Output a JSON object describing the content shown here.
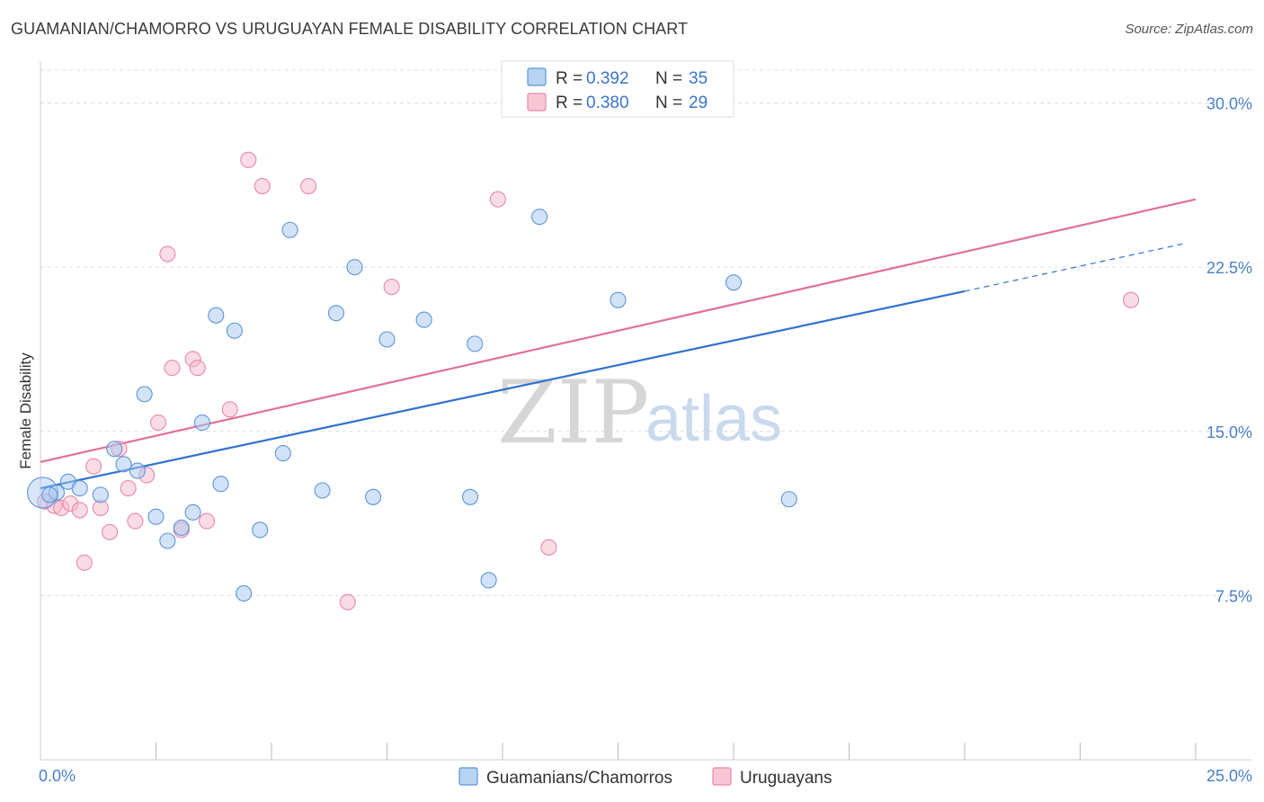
{
  "title": "GUAMANIAN/CHAMORRO VS URUGUAYAN FEMALE DISABILITY CORRELATION CHART",
  "source": "Source: ZipAtlas.com",
  "watermark": {
    "zip": "ZIP",
    "atlas": "atlas"
  },
  "colors": {
    "blue_fill": "#a8c8f0",
    "blue_stroke": "#5b95d9",
    "blue_line": "#2f72d0",
    "pink_fill": "#f6b9cc",
    "pink_stroke": "#e889a6",
    "pink_line": "#e0709a",
    "text_blue": "#3a76c8",
    "grid": "#dddddd"
  },
  "legend": {
    "r_label": "R =",
    "n_label": "N =",
    "rows": [
      {
        "series": "blue",
        "r": "0.392",
        "n": "35"
      },
      {
        "series": "pink",
        "r": "0.380",
        "n": "29"
      }
    ]
  },
  "bottom_legend": [
    {
      "series": "blue",
      "label": "Guamanians/Chamorros"
    },
    {
      "series": "pink",
      "label": "Uruguayans"
    }
  ],
  "chart_data": {
    "type": "scatter",
    "title": "GUAMANIAN/CHAMORRO VS URUGUAYAN FEMALE DISABILITY CORRELATION CHART",
    "xlabel": "",
    "ylabel": "Female Disability",
    "xlim": [
      0,
      25
    ],
    "ylim": [
      0,
      31.5
    ],
    "x_tick_labels": [
      {
        "value": 0,
        "label": "0.0%"
      },
      {
        "value": 25,
        "label": "25.0%"
      }
    ],
    "x_minor_ticks": [
      2.5,
      5.0,
      7.5,
      10.0,
      12.5,
      15.0,
      17.5,
      20.0,
      22.5,
      25.0
    ],
    "y_ticks": [
      {
        "value": 7.5,
        "label": "7.5%"
      },
      {
        "value": 15.0,
        "label": "15.0%"
      },
      {
        "value": 22.5,
        "label": "22.5%"
      },
      {
        "value": 30.0,
        "label": "30.0%"
      }
    ],
    "series": [
      {
        "name": "Guamanians/Chamorros",
        "color": "blue",
        "r": 0.392,
        "n": 35,
        "trend": {
          "x0": 0.0,
          "y0": 12.4,
          "x1": 20.0,
          "y1": 21.4,
          "dash_to_x": 24.8,
          "dash_to_y": 23.6
        },
        "points": [
          {
            "x": 0.05,
            "y": 12.2,
            "big": true
          },
          {
            "x": 0.35,
            "y": 12.2
          },
          {
            "x": 0.6,
            "y": 12.7
          },
          {
            "x": 0.85,
            "y": 12.4
          },
          {
            "x": 1.3,
            "y": 12.1
          },
          {
            "x": 1.6,
            "y": 14.2
          },
          {
            "x": 1.8,
            "y": 13.5
          },
          {
            "x": 2.1,
            "y": 13.2
          },
          {
            "x": 2.25,
            "y": 16.7
          },
          {
            "x": 2.5,
            "y": 11.1
          },
          {
            "x": 2.75,
            "y": 10.0
          },
          {
            "x": 3.05,
            "y": 10.6
          },
          {
            "x": 3.3,
            "y": 11.3
          },
          {
            "x": 3.5,
            "y": 15.4
          },
          {
            "x": 3.8,
            "y": 20.3
          },
          {
            "x": 3.9,
            "y": 12.6
          },
          {
            "x": 4.2,
            "y": 19.6
          },
          {
            "x": 4.4,
            "y": 7.6
          },
          {
            "x": 4.75,
            "y": 10.5
          },
          {
            "x": 5.25,
            "y": 14.0
          },
          {
            "x": 5.4,
            "y": 24.2
          },
          {
            "x": 6.1,
            "y": 12.3
          },
          {
            "x": 6.4,
            "y": 20.4
          },
          {
            "x": 6.8,
            "y": 22.5
          },
          {
            "x": 7.2,
            "y": 12.0
          },
          {
            "x": 7.5,
            "y": 19.2
          },
          {
            "x": 8.3,
            "y": 20.1
          },
          {
            "x": 9.3,
            "y": 12.0
          },
          {
            "x": 9.4,
            "y": 19.0
          },
          {
            "x": 9.7,
            "y": 8.2
          },
          {
            "x": 10.8,
            "y": 24.8
          },
          {
            "x": 12.5,
            "y": 21.0
          },
          {
            "x": 15.0,
            "y": 21.8
          },
          {
            "x": 16.2,
            "y": 11.9
          },
          {
            "x": 0.2,
            "y": 12.1
          }
        ]
      },
      {
        "name": "Uruguayans",
        "color": "pink",
        "r": 0.38,
        "n": 29,
        "trend": {
          "x0": 0.0,
          "y0": 13.6,
          "x1": 25.0,
          "y1": 25.6
        },
        "points": [
          {
            "x": 0.1,
            "y": 11.8
          },
          {
            "x": 0.3,
            "y": 11.6
          },
          {
            "x": 0.45,
            "y": 11.5
          },
          {
            "x": 0.65,
            "y": 11.7
          },
          {
            "x": 0.85,
            "y": 11.4
          },
          {
            "x": 0.95,
            "y": 9.0
          },
          {
            "x": 1.15,
            "y": 13.4
          },
          {
            "x": 1.3,
            "y": 11.5
          },
          {
            "x": 1.5,
            "y": 10.4
          },
          {
            "x": 1.7,
            "y": 14.2
          },
          {
            "x": 1.9,
            "y": 12.4
          },
          {
            "x": 2.05,
            "y": 10.9
          },
          {
            "x": 2.3,
            "y": 13.0
          },
          {
            "x": 2.55,
            "y": 15.4
          },
          {
            "x": 2.75,
            "y": 23.1
          },
          {
            "x": 2.85,
            "y": 17.9
          },
          {
            "x": 3.05,
            "y": 10.5
          },
          {
            "x": 3.3,
            "y": 18.3
          },
          {
            "x": 3.4,
            "y": 17.9
          },
          {
            "x": 3.6,
            "y": 10.9
          },
          {
            "x": 4.1,
            "y": 16.0
          },
          {
            "x": 4.5,
            "y": 27.4
          },
          {
            "x": 4.8,
            "y": 26.2
          },
          {
            "x": 5.8,
            "y": 26.2
          },
          {
            "x": 6.65,
            "y": 7.2
          },
          {
            "x": 7.6,
            "y": 21.6
          },
          {
            "x": 9.9,
            "y": 25.6
          },
          {
            "x": 11.0,
            "y": 9.7
          },
          {
            "x": 23.6,
            "y": 21.0
          }
        ]
      }
    ]
  }
}
